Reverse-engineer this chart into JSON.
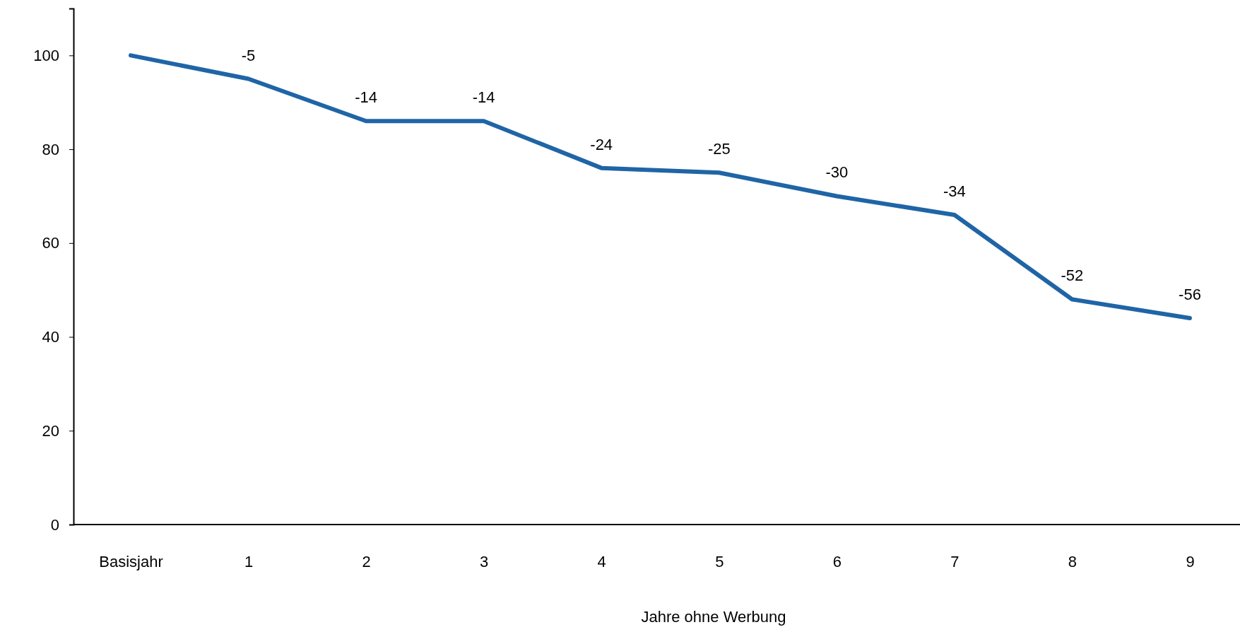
{
  "chart_data": {
    "type": "line",
    "xlabel": "Jahre ohne Werbung",
    "categories": [
      "Basisjahr",
      "1",
      "2",
      "3",
      "4",
      "5",
      "6",
      "7",
      "8",
      "9"
    ],
    "series": [
      {
        "color": "#1f65a6",
        "values": [
          100,
          95,
          86,
          86,
          76,
          75,
          70,
          66,
          48,
          44
        ]
      }
    ],
    "annotations": [
      {
        "text": "-5",
        "x": "1",
        "y": 95
      },
      {
        "text": "-14",
        "x": "2",
        "y": 86
      },
      {
        "text": "-14",
        "x": "3",
        "y": 86
      },
      {
        "text": "-24",
        "x": "4",
        "y": 76
      },
      {
        "text": "-25",
        "x": "5",
        "y": 75
      },
      {
        "text": "-30",
        "x": "6",
        "y": 70
      },
      {
        "text": "-34",
        "x": "7",
        "y": 66
      },
      {
        "text": "-52",
        "x": "8",
        "y": 48
      },
      {
        "text": "-56",
        "x": "9",
        "y": 44
      }
    ],
    "ylim": [
      0,
      110
    ],
    "yticks": [
      0,
      20,
      40,
      60,
      80,
      100
    ],
    "grid": false,
    "marker": "none",
    "line_style": "solid"
  }
}
